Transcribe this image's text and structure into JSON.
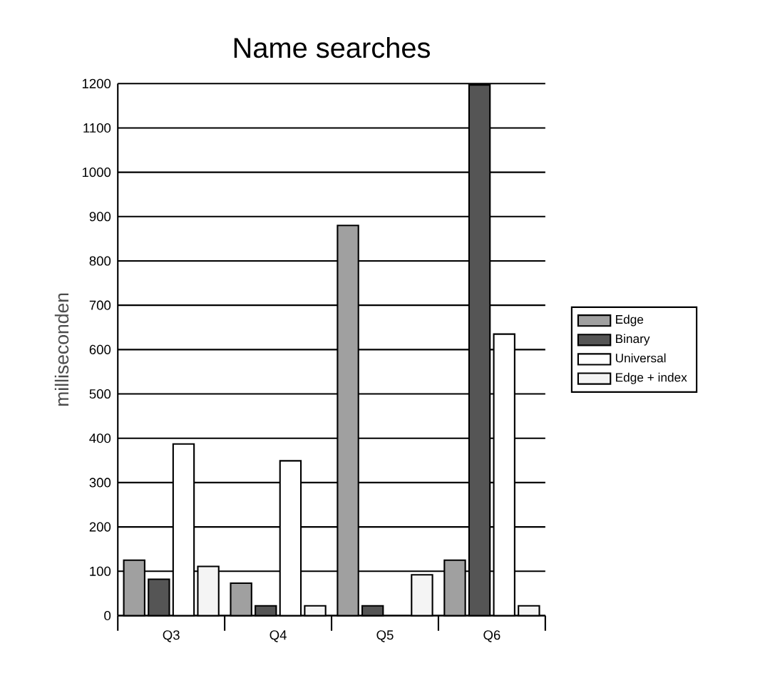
{
  "chart_data": {
    "type": "bar",
    "title": "Name searches",
    "ylabel": "milliseconden",
    "categories": [
      "Q3",
      "Q4",
      "Q5",
      "Q6"
    ],
    "series": [
      {
        "name": "Edge",
        "color": "#a0a0a0",
        "values": [
          125,
          73,
          880,
          125
        ]
      },
      {
        "name": "Binary",
        "color": "#555555",
        "values": [
          82,
          22,
          22,
          1197
        ]
      },
      {
        "name": "Universal",
        "color": "#ffffff",
        "values": [
          387,
          349,
          null,
          635
        ]
      },
      {
        "name": "Edge + index",
        "color": "#f4f4f4",
        "values": [
          111,
          22,
          92,
          22
        ]
      }
    ],
    "ylim": [
      0,
      1200
    ],
    "yticks": [
      0,
      100,
      200,
      300,
      400,
      500,
      600,
      700,
      800,
      900,
      1000,
      1100,
      1200
    ],
    "grid": "y",
    "legend": "right"
  }
}
